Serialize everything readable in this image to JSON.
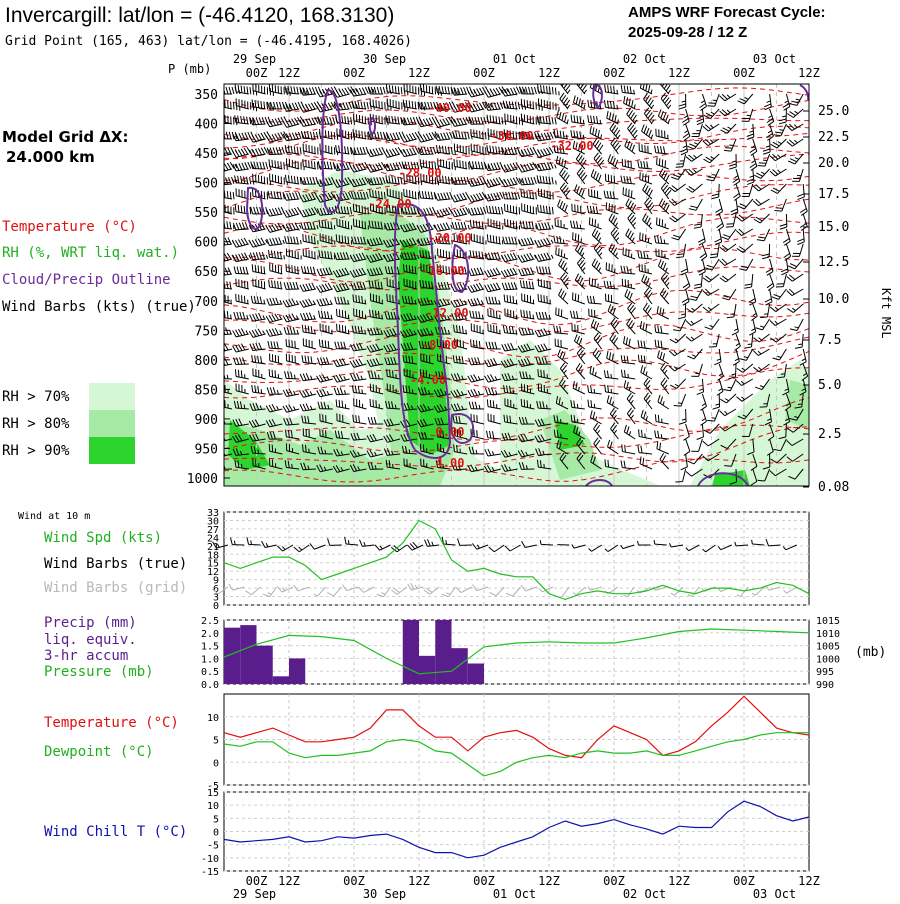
{
  "header": {
    "title": "Invercargill:  lat/lon = (-46.4120, 168.3130)",
    "grid_point": "Grid Point (165, 463) lat/lon = (-46.4195, 168.4026)",
    "cycle_line1": "AMPS WRF Forecast Cycle:",
    "cycle_line2": "2025-09-28 / 12  Z"
  },
  "left_labels": {
    "model_grid_1": "Model Grid ΔX:",
    "model_grid_2": "24.000 km",
    "temperature": "Temperature (°C)",
    "rh": "RH (%, WRT liq. wat.)",
    "cloud": "Cloud/Precip Outline",
    "barbs": "Wind Barbs (kts) (true)",
    "rh70": "RH > 70%",
    "rh80": "RH > 80%",
    "rh90": "RH > 90%",
    "wind10m": "Wind at 10 m",
    "wspd": "Wind Spd (kts)",
    "wbarbs_true": "Wind Barbs (true)",
    "wbarbs_grid": "Wind Barbs (grid)",
    "precip1": "Precip (mm)",
    "precip2": "liq. equiv.",
    "precip3": "3-hr accum",
    "pressure": "Pressure (mb)",
    "temp2": "Temperature (°C)",
    "dew": "Dewpoint (°C)",
    "windchill": "Wind Chill T (°C)"
  },
  "colors": {
    "temperature": "#e01010",
    "dewpoint": "#20c020",
    "wind_speed": "#20c020",
    "pressure": "#20c020",
    "precip": "#5a1e8c",
    "cloud_outline": "#6a2c9a",
    "wind_chill": "#1010b0",
    "grid_barbs": "#b0b0b0",
    "rh70": "#d6f7d6",
    "rh80": "#a6eaa6",
    "rh90": "#2ed42e"
  },
  "time_axis": {
    "top_dates": [
      "29 Sep",
      "30 Sep",
      "01 Oct",
      "02 Oct",
      "03 Oct"
    ],
    "hour_ticks": [
      "00Z",
      "12Z",
      "00Z",
      "12Z",
      "00Z",
      "12Z",
      "00Z",
      "12Z",
      "00Z",
      "12Z"
    ],
    "bottom_dates": [
      "29 Sep",
      "30 Sep",
      "01 Oct",
      "02 Oct",
      "03 Oct"
    ]
  },
  "chart_data": [
    {
      "type": "heatmap",
      "name": "cross-section",
      "y_axis_left": {
        "label": "P (mb)",
        "ticks": [
          350,
          400,
          450,
          500,
          550,
          600,
          650,
          700,
          750,
          800,
          850,
          900,
          950,
          1000
        ]
      },
      "y_axis_right": {
        "label": "Kft MSL",
        "ticks": [
          "25.0",
          "22.5",
          "20.0",
          "17.5",
          "15.0",
          "12.5",
          "10.0",
          "7.5",
          "5.0",
          "2.5",
          "0.08"
        ]
      },
      "x_hours": [
        0,
        108
      ],
      "temperature_labels": [
        "-40.00",
        "-36.00",
        "-32.00",
        "-28.00",
        "-24.00",
        "-20.00",
        "-16.00",
        "-12.00",
        "-8.00",
        "-4.00",
        "0.00",
        "4.00"
      ],
      "legend": [
        "Temperature (°C)",
        "RH (%, WRT liq. wat.)",
        "Cloud/Precip Outline",
        "Wind Barbs (kts) (true)"
      ]
    },
    {
      "type": "line",
      "name": "wind-speed-10m",
      "ylim": [
        0,
        33
      ],
      "yticks": [
        0,
        3,
        6,
        9,
        12,
        15,
        18,
        21,
        24,
        27,
        30,
        33
      ],
      "x_hours": [
        0,
        3,
        6,
        9,
        12,
        15,
        18,
        21,
        24,
        27,
        30,
        33,
        36,
        39,
        42,
        45,
        48,
        51,
        54,
        57,
        60,
        63,
        66,
        69,
        72,
        75,
        78,
        81,
        84,
        87,
        90,
        93,
        96,
        99,
        102,
        105,
        108
      ],
      "series": [
        {
          "name": "Wind Spd (kts)",
          "values": [
            15,
            13,
            15,
            17,
            17,
            14,
            9,
            11,
            13,
            15,
            17,
            22,
            30,
            27,
            16,
            12,
            13,
            11,
            10,
            10,
            4,
            2,
            4,
            5,
            4,
            4,
            5,
            7,
            5,
            4,
            6,
            6,
            5,
            6,
            8,
            7,
            4
          ]
        }
      ]
    },
    {
      "type": "bar",
      "name": "precip-pressure",
      "ylim_left": [
        0,
        2.5
      ],
      "yticks_left": [
        "0.0",
        "0.5",
        "1.0",
        "1.5",
        "2.0",
        "2.5"
      ],
      "ylim_right": [
        990,
        1015
      ],
      "yticks_right": [
        990,
        995,
        1000,
        1005,
        1010,
        1015
      ],
      "right_unit": "(mb)",
      "bar_x_hours": [
        0,
        3,
        6,
        9,
        12,
        33,
        36,
        39,
        42,
        45
      ],
      "precip_values": [
        2.2,
        2.3,
        1.5,
        0.3,
        1.0,
        2.5,
        1.1,
        2.5,
        1.4,
        0.8
      ],
      "pressure_x_hours": [
        0,
        6,
        12,
        18,
        24,
        30,
        36,
        42,
        48,
        54,
        60,
        66,
        72,
        78,
        84,
        90,
        96,
        102,
        108
      ],
      "pressure_values": [
        1000.5,
        1005.5,
        1009,
        1008.5,
        1007,
        1000,
        994,
        995,
        1004.5,
        1006,
        1006.5,
        1006,
        1006,
        1008,
        1010.5,
        1011.5,
        1011,
        1010.5,
        1010
      ],
      "series": [
        {
          "name": "Precip (mm)"
        },
        {
          "name": "Pressure (mb)"
        }
      ]
    },
    {
      "type": "line",
      "name": "temperature-dewpoint",
      "ylim": [
        -5,
        15
      ],
      "yticks": [
        -5,
        0,
        5,
        10
      ],
      "x_hours": [
        0,
        3,
        6,
        9,
        12,
        15,
        18,
        21,
        24,
        27,
        30,
        33,
        36,
        39,
        42,
        45,
        48,
        51,
        54,
        57,
        60,
        63,
        66,
        69,
        72,
        75,
        78,
        81,
        84,
        87,
        90,
        93,
        96,
        99,
        102,
        105,
        108
      ],
      "series": [
        {
          "name": "Temperature (°C)",
          "values": [
            6.5,
            5.5,
            6.5,
            7.5,
            6,
            4.5,
            4.5,
            5,
            5.5,
            7.5,
            11.5,
            11.5,
            8,
            5.5,
            5.5,
            2.5,
            5.5,
            6.5,
            7,
            5.5,
            3,
            1.5,
            1,
            5,
            8,
            6.5,
            5,
            1.5,
            2.5,
            4.5,
            8,
            11,
            14.5,
            11,
            7.5,
            6.5,
            6
          ]
        },
        {
          "name": "Dewpoint (°C)",
          "values": [
            4,
            3.5,
            4.5,
            4.5,
            2,
            1,
            1.5,
            1.5,
            2,
            2.5,
            4.5,
            5,
            4.5,
            2.5,
            2,
            -0.5,
            -3,
            -2,
            0,
            1,
            1.5,
            1,
            2,
            2.5,
            2,
            2,
            2.5,
            1.5,
            1.5,
            2.5,
            3.5,
            4.5,
            5,
            6,
            6.5,
            6.5,
            6.5
          ]
        }
      ]
    },
    {
      "type": "line",
      "name": "wind-chill",
      "ylim": [
        -15,
        15
      ],
      "yticks": [
        -15,
        -10,
        -5,
        0,
        5,
        10,
        15
      ],
      "x_hours": [
        0,
        3,
        6,
        9,
        12,
        15,
        18,
        21,
        24,
        27,
        30,
        33,
        36,
        39,
        42,
        45,
        48,
        51,
        54,
        57,
        60,
        63,
        66,
        69,
        72,
        75,
        78,
        81,
        84,
        87,
        90,
        93,
        96,
        99,
        102,
        105,
        108
      ],
      "series": [
        {
          "name": "Wind Chill T (°C)",
          "values": [
            -3,
            -4,
            -3.5,
            -3,
            -2,
            -4,
            -3.5,
            -2,
            -2.5,
            -1.5,
            -1,
            -3,
            -6,
            -8,
            -8,
            -10,
            -9,
            -6,
            -4,
            -2,
            1.5,
            4,
            2,
            3,
            4.5,
            2.5,
            1,
            -1,
            2,
            1.5,
            1.5,
            7.5,
            11.5,
            9.5,
            6,
            4,
            5.5
          ]
        }
      ]
    }
  ]
}
